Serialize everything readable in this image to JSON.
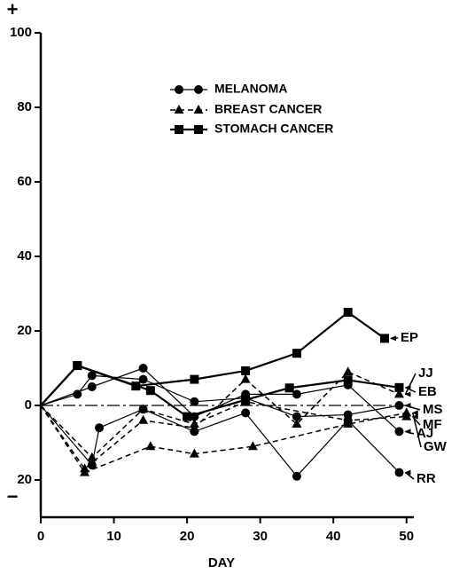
{
  "chart_data": {
    "type": "line",
    "x_label": "DAY",
    "y_sign_labels": [
      "+",
      "−"
    ],
    "legend": [
      "MELANOMA",
      "BREAST CANCER",
      "STOMACH CANCER"
    ],
    "xlim": [
      0,
      51
    ],
    "ylim": [
      -30,
      100
    ],
    "xticks": [
      0,
      10,
      20,
      30,
      40,
      50
    ],
    "yticks": [
      100,
      80,
      60,
      40,
      20,
      0,
      {
        "value": -20,
        "label": "20"
      }
    ],
    "zero_line": 0,
    "color": "#000000",
    "series": [
      {
        "name": "EP",
        "group": 2,
        "x": [
          0,
          5,
          13,
          21,
          28,
          35,
          42,
          47
        ],
        "values": [
          0,
          10.7,
          5.2,
          7,
          9.3,
          14,
          25,
          18
        ]
      },
      {
        "name": "JJ",
        "group": 1,
        "x": [
          0,
          6,
          14,
          21,
          28,
          35,
          42,
          49
        ],
        "values": [
          0,
          -17,
          -4,
          -6,
          7,
          -5,
          9,
          3
        ]
      },
      {
        "name": "EB",
        "group": 2,
        "x": [
          0,
          5,
          15,
          20,
          28,
          34,
          42,
          49
        ],
        "values": [
          0,
          10.7,
          4,
          -3,
          1.5,
          4.7,
          6.8,
          4.8
        ]
      },
      {
        "name": "MS",
        "group": 0,
        "x": [
          0,
          5,
          7,
          14,
          21,
          28,
          35,
          42,
          49
        ],
        "values": [
          0,
          3,
          8,
          7,
          1,
          2,
          -3,
          -2.5,
          0
        ]
      },
      {
        "name": "MF",
        "group": 1,
        "x": [
          0,
          7,
          14,
          21,
          28,
          42,
          50
        ],
        "values": [
          0,
          -14,
          -1,
          -5,
          1,
          -4,
          -3
        ]
      },
      {
        "name": "AJ",
        "group": 0,
        "x": [
          0,
          7,
          14,
          21,
          28,
          35,
          42,
          49
        ],
        "values": [
          0,
          5,
          10,
          -3,
          3,
          3,
          5.5,
          -7
        ]
      },
      {
        "name": "GW",
        "group": 1,
        "x": [
          0,
          6,
          15,
          21,
          29,
          42,
          50
        ],
        "values": [
          0,
          -18,
          -11,
          -13,
          -11,
          -5,
          -2
        ]
      },
      {
        "name": "RR",
        "group": 0,
        "x": [
          0,
          7,
          8,
          14,
          21,
          28,
          35,
          42,
          49
        ],
        "values": [
          0,
          -16,
          -6,
          -1,
          -7,
          -2,
          -19,
          -4,
          -18
        ]
      }
    ]
  }
}
